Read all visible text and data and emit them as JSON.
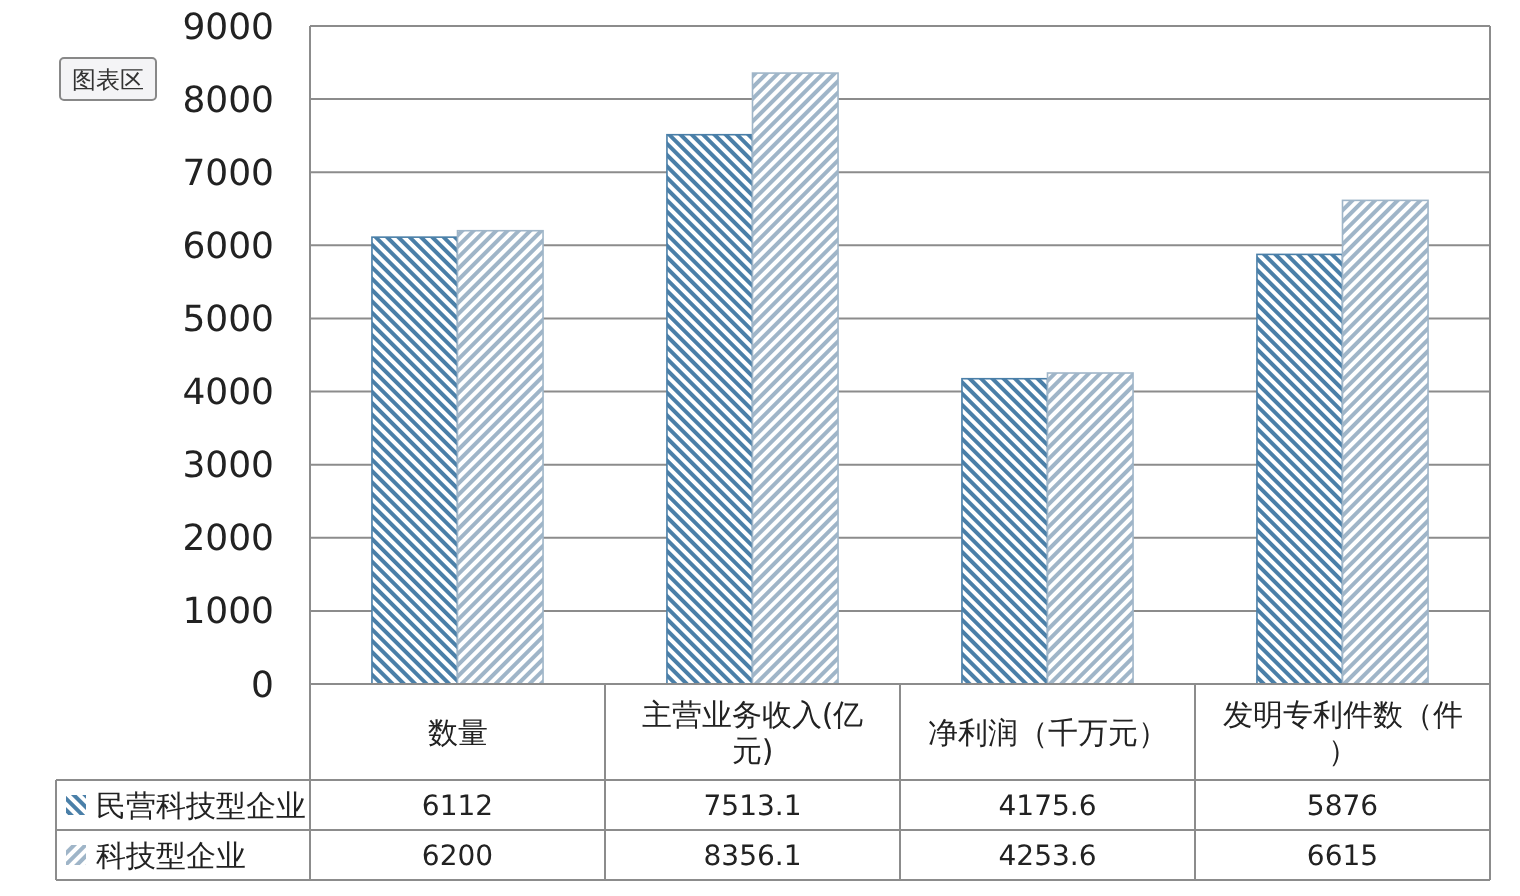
{
  "chart_data": {
    "type": "bar",
    "categories": [
      "数量",
      "主营业务收入(亿元)",
      "净利润（千万元）",
      "发明专利件数（件）"
    ],
    "series": [
      {
        "name": "民营科技型企业",
        "color": "#4a7fa8",
        "values": [
          6112,
          7513.1,
          4175.6,
          5876
        ]
      },
      {
        "name": "科技型企业",
        "color": "#9fb5c8",
        "values": [
          6200,
          8356.1,
          4253.6,
          6615
        ]
      }
    ],
    "ylim": [
      0,
      9000
    ],
    "yticks": [
      0,
      1000,
      2000,
      3000,
      4000,
      5000,
      6000,
      7000,
      8000,
      9000
    ],
    "grid": "y",
    "data_labels": true,
    "legend": "bottom",
    "annotations": [
      "图表区"
    ]
  }
}
